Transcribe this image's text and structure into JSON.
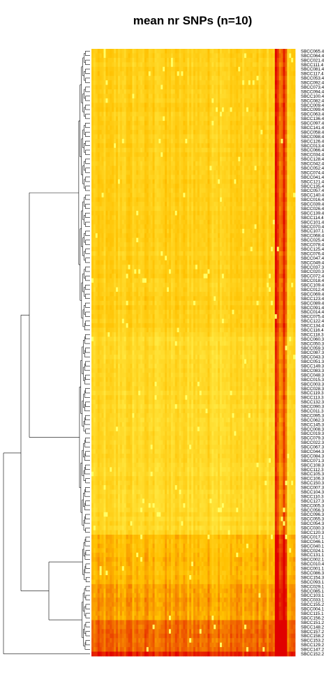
{
  "chart_data": {
    "type": "heatmap",
    "title": "mean nr SNPs (n=10)",
    "xlabel": "",
    "ylabel": "",
    "dendrogram": "rows, left side",
    "color_scale": {
      "low": "#ffff66",
      "mid": "#ffc000",
      "high": "#e00000"
    },
    "column_count": 100,
    "row_labels": [
      "SBCC065.4",
      "SBCC064.4",
      "SBCC021.4",
      "SBCC111.4",
      "SBCC081.4",
      "SBCC117.4",
      "SBCC053.4",
      "SBCC092.4",
      "SBCC073.4",
      "SBCC094.4",
      "SBCC100.4",
      "SBCC082.4",
      "SBCC009.4",
      "SBCC099.4",
      "SBCC063.4",
      "SBCC136.4",
      "SBCC097.4",
      "SBCC141.4",
      "SBCC058.4",
      "SBCC098.4",
      "SBCC126.4",
      "SBCC013.4",
      "SBCC066.4",
      "SBCC034.4",
      "SBCC128.4",
      "SBCC042.4",
      "SBCC052.4",
      "SBCC074.4",
      "SBCC041.4",
      "SBCC121.4",
      "SBCC135.4",
      "SBCC057.4",
      "SBCC140.4",
      "SBCC016.4",
      "SBCC039.4",
      "SBCC026.4",
      "SBCC139.4",
      "SBCC114.4",
      "SBCC101.4",
      "SBCC070.4",
      "SBCC107.1",
      "SBCC068.4",
      "SBCC025.4",
      "SBCC078.4",
      "SBCC125.4",
      "SBCC076.4",
      "SBCC047.4",
      "SBCC049.4",
      "SBCC037.3",
      "SBCC020.3",
      "SBCC072.4",
      "SBCC018.4",
      "SBCC109.4",
      "SBCC012.4",
      "SBCC069.4",
      "SBCC123.4",
      "SBCC089.4",
      "SBCC091.4",
      "SBCC014.4",
      "SBCC075.4",
      "SBCC122.4",
      "SBCC134.4",
      "SBCC116.4",
      "SBCC118.3",
      "SBCC060.3",
      "SBCC050.3",
      "SBCC059.3",
      "SBCC087.3",
      "SBCC043.3",
      "SBCC051.3",
      "SBCC149.3",
      "SBCC083.3",
      "SBCC048.3",
      "SBCC015.3",
      "SBCC003.3",
      "SBCC028.3",
      "SBCC119.3",
      "SBCC113.3",
      "SBCC132.3",
      "SBCC090.3",
      "SBCC011.3",
      "SBCC095.3",
      "SBCC062.3",
      "SBCC145.3",
      "SBCC008.3",
      "SBCC019.3",
      "SBCC079.3",
      "SBCC022.3",
      "SBCC067.3",
      "SBCC044.3",
      "SBCC084.3",
      "SBCC071.3",
      "SBCC108.3",
      "SBCC112.3",
      "SBCC105.3",
      "SBCC106.3",
      "SBCC150.3",
      "SBCC007.3",
      "SBCC104.3",
      "SBCC110.3",
      "SBCC127.3",
      "SBCC005.3",
      "SBCC056.3",
      "SBCC096.3",
      "SBCC055.3",
      "SBCC054.3",
      "SBCC030.3",
      "SBCC120.3",
      "SBCC017.1",
      "SBCC046.1",
      "SBCC040.1",
      "SBCC024.1",
      "SBCC131.1",
      "SBCC002.1",
      "SBCC010.4",
      "SBCC001.1",
      "SBCC086.3",
      "SBCC154.3",
      "SBCC093.1",
      "SBCC029.1",
      "SBCC085.1",
      "SBCC103.1",
      "SBCC033.1",
      "SBCC155.2",
      "SBCC004.1",
      "SBCC115.1",
      "SBCC156.2",
      "SBCC151.2",
      "SBCC148.2",
      "SBCC157.2",
      "SBCC158.2",
      "SBCC153.2",
      "SBCC129.2",
      "SBCC147.2",
      "SBCC152.2"
    ]
  }
}
